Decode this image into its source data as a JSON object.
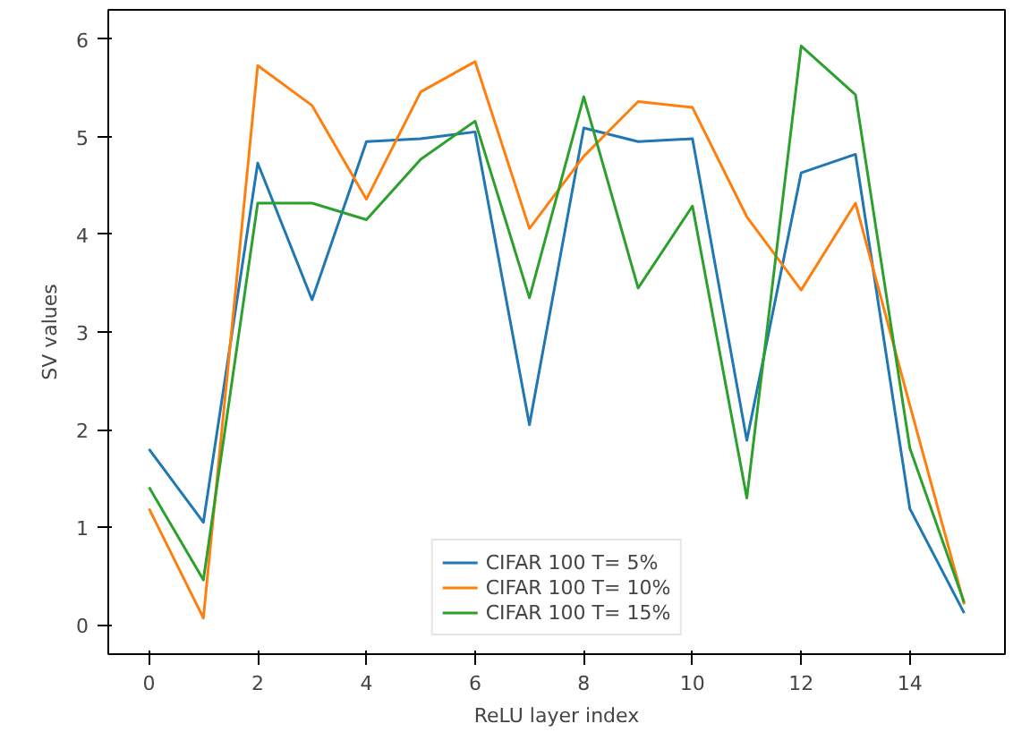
{
  "chart_data": {
    "type": "line",
    "xlabel": "ReLU layer index",
    "ylabel": "SV values",
    "x": [
      0,
      1,
      2,
      3,
      4,
      5,
      6,
      7,
      8,
      9,
      10,
      11,
      12,
      13,
      14,
      15
    ],
    "series": [
      {
        "name": "CIFAR 100 T= 5%",
        "color": "#1f77b4",
        "values": [
          1.8,
          1.05,
          4.73,
          3.33,
          4.95,
          4.98,
          5.05,
          2.05,
          5.09,
          4.95,
          4.98,
          1.89,
          4.63,
          4.82,
          1.19,
          0.12
        ]
      },
      {
        "name": "CIFAR 100 T= 10%",
        "color": "#ff7f0e",
        "values": [
          1.19,
          0.07,
          5.73,
          5.32,
          4.36,
          5.46,
          5.77,
          4.06,
          4.8,
          5.36,
          5.3,
          4.18,
          3.43,
          4.32,
          2.25,
          0.21
        ]
      },
      {
        "name": "CIFAR 100 T= 15%",
        "color": "#2ca02c",
        "values": [
          1.41,
          0.46,
          4.32,
          4.32,
          4.15,
          4.77,
          5.16,
          3.35,
          5.41,
          3.45,
          4.29,
          1.3,
          5.93,
          5.43,
          1.81,
          0.23
        ]
      }
    ],
    "xlim": [
      -0.75,
      15.75
    ],
    "xticks": [
      0,
      2,
      4,
      6,
      8,
      10,
      12,
      14
    ],
    "ylim": [
      -0.3,
      6.3
    ],
    "yticks": [
      0,
      1,
      2,
      3,
      4,
      5,
      6
    ],
    "legend": "bottom",
    "grid": false,
    "line_style": "solid"
  }
}
